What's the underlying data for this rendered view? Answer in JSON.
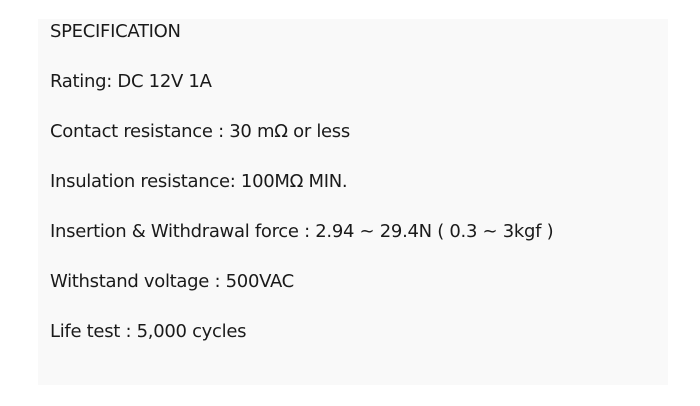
{
  "spec": {
    "title": "SPECIFICATION",
    "lines": [
      "Rating: DC 12V 1A",
      "Contact resistance : 30 mΩ or less",
      "Insulation resistance: 100MΩ MIN.",
      "Insertion & Withdrawal force : 2.94 ~ 29.4N ( 0.3 ~ 3kgf )",
      "Withstand voltage : 500VAC",
      "Life test : 5,000 cycles"
    ]
  }
}
